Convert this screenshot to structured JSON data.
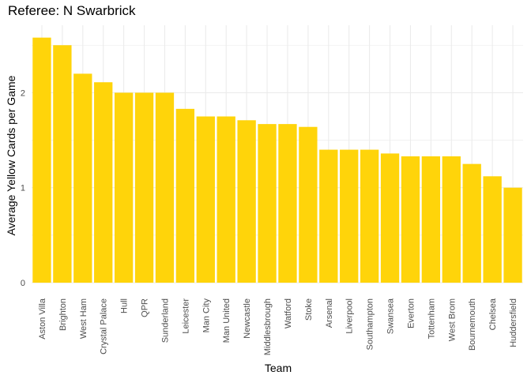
{
  "chart_data": {
    "type": "bar",
    "title": "Referee: N Swarbrick",
    "xlabel": "Team",
    "ylabel": "Average Yellow Cards per Game",
    "categories": [
      "Aston Villa",
      "Brighton",
      "West Ham",
      "Crystal Palace",
      "Hull",
      "QPR",
      "Sunderland",
      "Leicester",
      "Man City",
      "Man United",
      "Newcastle",
      "Middlesbrough",
      "Watford",
      "Stoke",
      "Arsenal",
      "Liverpool",
      "Southampton",
      "Swansea",
      "Everton",
      "Tottenham",
      "West Brom",
      "Bournemouth",
      "Chelsea",
      "Huddersfield"
    ],
    "values": [
      2.58,
      2.5,
      2.2,
      2.11,
      2.0,
      2.0,
      2.0,
      1.83,
      1.75,
      1.75,
      1.71,
      1.67,
      1.67,
      1.64,
      1.4,
      1.4,
      1.4,
      1.36,
      1.33,
      1.33,
      1.33,
      1.25,
      1.12,
      1.0
    ],
    "yticks": [
      0,
      1,
      2
    ],
    "ylim": [
      0,
      2.71
    ],
    "grid": true,
    "legend": "none",
    "colors": {
      "bar": "#FFD40A",
      "grid": "#EBEBEB"
    }
  }
}
